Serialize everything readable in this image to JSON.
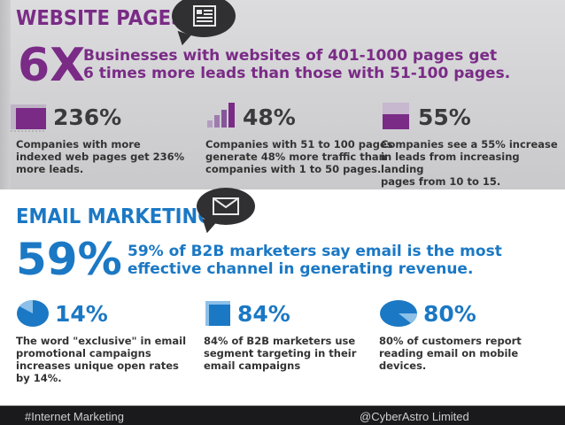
{
  "website": {
    "title": "WEBSITE PAGES",
    "headline_stat": "6X",
    "headline_line1": "Businesses with websites of 401-1000 pages get",
    "headline_line2": "6 times more leads than those with 51-100 pages.",
    "stats": [
      {
        "value": "236%",
        "desc": [
          "Companies with more",
          "indexed web pages get 236%",
          "more leads."
        ]
      },
      {
        "value": "48%",
        "desc": [
          "Companies with 51 to 100 pages",
          "generate 48% more traffic than",
          "companies with 1 to 50 pages."
        ]
      },
      {
        "value": "55%",
        "desc": [
          "Companies see a 55% increase",
          "in leads from increasing landing",
          "pages from 10 to 15."
        ]
      }
    ]
  },
  "email": {
    "title": "EMAIL MARKETING",
    "headline_stat": "59%",
    "headline_line1": "59% of B2B marketers say email is the most",
    "headline_line2": "effective channel in generating revenue.",
    "stats": [
      {
        "value": "14%",
        "desc": [
          "The word \"exclusive\" in email",
          "promotional campaigns",
          "increases unique open rates",
          "by 14%."
        ]
      },
      {
        "value": "84%",
        "desc": [
          "84% of B2B marketers use",
          "segment targeting in their",
          "email campaigns"
        ]
      },
      {
        "value": "80%",
        "desc": [
          "80% of customers report",
          "reading email on mobile",
          "devices."
        ]
      }
    ]
  },
  "footer": {
    "left": "#Internet Marketing",
    "right": "@CyberAstro Limited"
  },
  "colors": {
    "purple": "#7a2b86",
    "blue": "#1b78c4",
    "dark": "#303033"
  },
  "icons": [
    "document-icon",
    "envelope-icon",
    "bar-icon",
    "bar-chart-icon",
    "square-chart-icon",
    "pie-14-icon",
    "square-84-icon",
    "pie-80-icon"
  ]
}
